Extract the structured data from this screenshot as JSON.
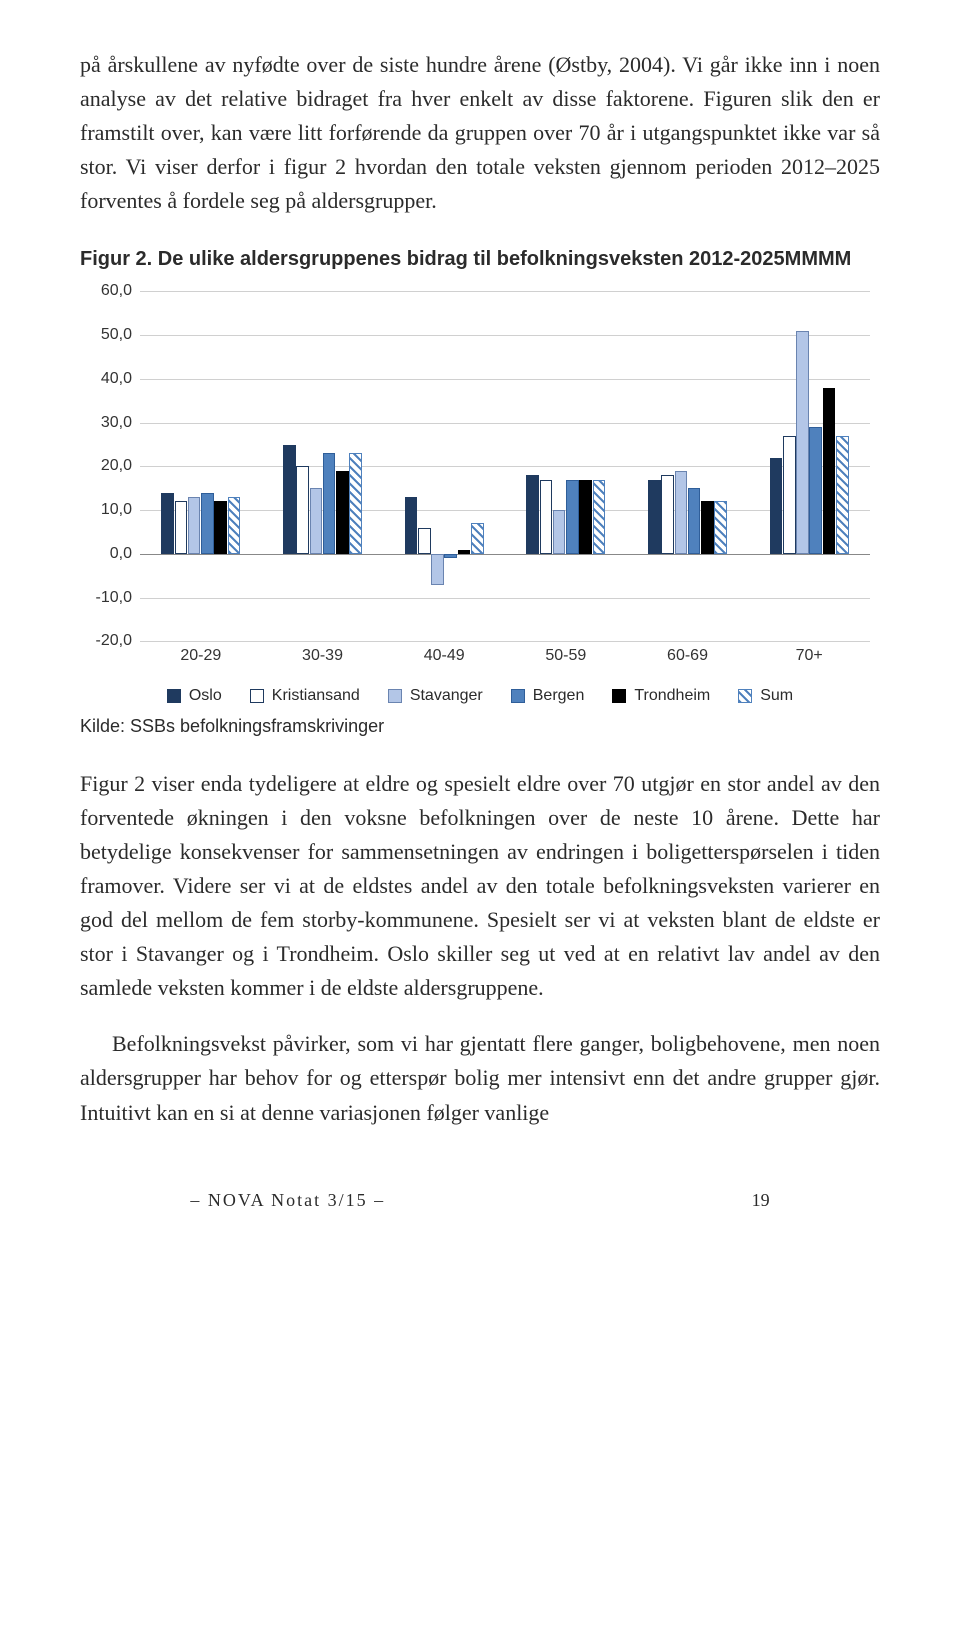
{
  "paragraphs": {
    "p1": "på årskullene av nyfødte over de siste hundre årene (Østby, 2004). Vi går ikke inn i noen analyse av det relative bidraget fra hver enkelt av disse faktorene. Figuren slik den er framstilt over, kan være litt forførende da gruppen over 70 år i utgangspunktet ikke var så stor. Vi viser derfor i figur 2 hvordan den totale veksten gjennom perioden 2012–2025 forventes å fordele seg på aldersgrupper.",
    "p2": "Figur 2 viser enda tydeligere at eldre og spesielt eldre over 70 utgjør en stor andel av den forventede økningen i den voksne befolkningen over de neste 10 årene. Dette har betydelige konsekvenser for sammensetningen av endringen i boligetterspørselen i tiden framover. Videre ser vi at de eldstes andel av den totale befolkningsveksten varierer en god del mellom de fem storby-kommunene. Spesielt ser vi at veksten blant de eldste er stor i Stavanger og i Trondheim. Oslo skiller seg ut ved at en relativt lav andel av den samlede veksten kommer i de eldste aldersgruppene.",
    "p3": "Befolkningsvekst påvirker, som vi har gjentatt flere ganger, boligbehovene, men noen aldersgrupper har behov for og etterspør bolig mer intensivt enn det andre grupper gjør. Intuitivt kan en si at denne variasjonen følger vanlige"
  },
  "figure": {
    "caption": "Figur 2.  De ulike aldersgruppenes bidrag til befolkningsveksten 2012-2025MMMM",
    "source": "Kilde: SSBs befolkningsframskrivinger",
    "type": "bar",
    "categories": [
      "20-29",
      "30-39",
      "40-49",
      "50-59",
      "60-69",
      "70+"
    ],
    "series": [
      "Oslo",
      "Kristiansand",
      "Stavanger",
      "Bergen",
      "Trondheim",
      "Sum"
    ],
    "values": {
      "Oslo": [
        14,
        25,
        13,
        18,
        17,
        22
      ],
      "Kristiansand": [
        12,
        20,
        6,
        17,
        18,
        27
      ],
      "Stavanger": [
        13,
        15,
        -7,
        10,
        19,
        51
      ],
      "Bergen": [
        14,
        23,
        -1,
        17,
        15,
        29
      ],
      "Trondheim": [
        12,
        19,
        1,
        17,
        12,
        38
      ],
      "Sum": [
        13,
        23,
        7,
        17,
        12,
        27
      ]
    },
    "ylim": [
      -20,
      60
    ],
    "yticks": [
      -20,
      -10,
      0,
      10,
      20,
      30,
      40,
      50,
      60
    ],
    "ytick_labels": [
      "-20,0",
      "-10,0",
      "0,0",
      "10,0",
      "20,0",
      "30,0",
      "40,0",
      "50,0",
      "60,0"
    ],
    "colors": {
      "Oslo": {
        "fill": "#1f3a5f",
        "border": "#1f3a5f"
      },
      "Kristiansand": {
        "fill": "#ffffff",
        "border": "#1f3a5f"
      },
      "Stavanger": {
        "fill": "#b3c6e7",
        "border": "#6a84b0"
      },
      "Bergen": {
        "fill": "#4f81bd",
        "border": "#2f5e99"
      },
      "Trondheim": {
        "fill": "#000000",
        "border": "#000000"
      },
      "Sum": {
        "fill_hatch": "#4f81bd",
        "border": "#4f81bd"
      }
    },
    "grid_color": "#d0d0d0",
    "background": "#ffffff",
    "axis_font_size": 16,
    "caption_font_size": 20,
    "bar_group_gap": 0.35,
    "bar_inner_gap": 0.05
  },
  "footer": {
    "text": "– NOVA Notat 3/15 –",
    "page_number": "19"
  }
}
